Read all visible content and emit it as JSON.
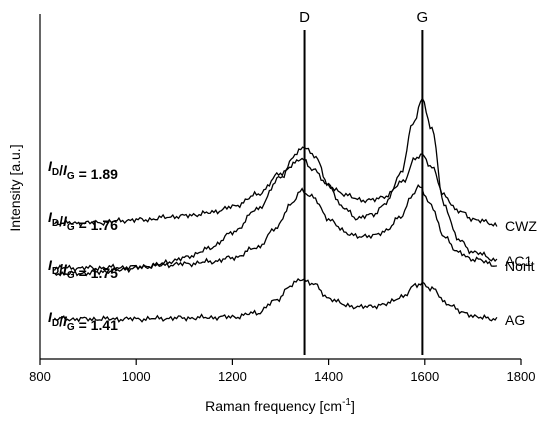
{
  "chart_data": {
    "type": "line",
    "xlabel_main": "Raman frequency [cm",
    "xlabel_sup": "-1",
    "xlabel_end": "]",
    "ylabel": "Intensity [a.u.]",
    "xlim": [
      800,
      1800
    ],
    "x_ticks": [
      "800",
      "1000",
      "1200",
      "1400",
      "1600",
      "1800"
    ],
    "markers": [
      {
        "name": "D",
        "x": 1350
      },
      {
        "name": "G",
        "x": 1595
      }
    ],
    "series": [
      {
        "name": "AC1",
        "ratio": "1.89",
        "baseline": 20,
        "peaks": [
          {
            "x": 830,
            "h": 52
          },
          {
            "x": 850,
            "h": 51
          },
          {
            "x": 900,
            "h": 52
          },
          {
            "x": 950,
            "h": 54
          },
          {
            "x": 1000,
            "h": 57
          },
          {
            "x": 1050,
            "h": 61
          },
          {
            "x": 1100,
            "h": 67
          },
          {
            "x": 1150,
            "h": 76
          },
          {
            "x": 1200,
            "h": 92
          },
          {
            "x": 1250,
            "h": 115
          },
          {
            "x": 1300,
            "h": 147
          },
          {
            "x": 1330,
            "h": 170
          },
          {
            "x": 1350,
            "h": 178
          },
          {
            "x": 1370,
            "h": 170
          },
          {
            "x": 1400,
            "h": 140
          },
          {
            "x": 1430,
            "h": 117
          },
          {
            "x": 1460,
            "h": 107
          },
          {
            "x": 1490,
            "h": 110
          },
          {
            "x": 1520,
            "h": 122
          },
          {
            "x": 1550,
            "h": 152
          },
          {
            "x": 1575,
            "h": 200
          },
          {
            "x": 1595,
            "h": 226
          },
          {
            "x": 1615,
            "h": 195
          },
          {
            "x": 1640,
            "h": 120
          },
          {
            "x": 1670,
            "h": 85
          },
          {
            "x": 1700,
            "h": 73
          },
          {
            "x": 1750,
            "h": 65
          }
        ]
      },
      {
        "name": "CWZ",
        "ratio": "1.76",
        "peaks": [
          {
            "x": 830,
            "h": 108
          },
          {
            "x": 900,
            "h": 108
          },
          {
            "x": 1000,
            "h": 111
          },
          {
            "x": 1100,
            "h": 115
          },
          {
            "x": 1150,
            "h": 118
          },
          {
            "x": 1200,
            "h": 124
          },
          {
            "x": 1250,
            "h": 136
          },
          {
            "x": 1300,
            "h": 157
          },
          {
            "x": 1330,
            "h": 168
          },
          {
            "x": 1345,
            "h": 172
          },
          {
            "x": 1365,
            "h": 163
          },
          {
            "x": 1400,
            "h": 145
          },
          {
            "x": 1440,
            "h": 135
          },
          {
            "x": 1480,
            "h": 130
          },
          {
            "x": 1520,
            "h": 135
          },
          {
            "x": 1555,
            "h": 150
          },
          {
            "x": 1580,
            "h": 172
          },
          {
            "x": 1595,
            "h": 176
          },
          {
            "x": 1615,
            "h": 164
          },
          {
            "x": 1640,
            "h": 135
          },
          {
            "x": 1670,
            "h": 120
          },
          {
            "x": 1700,
            "h": 112
          },
          {
            "x": 1750,
            "h": 106
          }
        ]
      },
      {
        "name": "Norit",
        "ratio": "1.75",
        "peaks": [
          {
            "x": 830,
            "h": 63
          },
          {
            "x": 900,
            "h": 63
          },
          {
            "x": 1000,
            "h": 64
          },
          {
            "x": 1100,
            "h": 67
          },
          {
            "x": 1150,
            "h": 69
          },
          {
            "x": 1200,
            "h": 73
          },
          {
            "x": 1250,
            "h": 83
          },
          {
            "x": 1290,
            "h": 102
          },
          {
            "x": 1320,
            "h": 126
          },
          {
            "x": 1345,
            "h": 140
          },
          {
            "x": 1365,
            "h": 135
          },
          {
            "x": 1400,
            "h": 112
          },
          {
            "x": 1440,
            "h": 97
          },
          {
            "x": 1480,
            "h": 94
          },
          {
            "x": 1520,
            "h": 100
          },
          {
            "x": 1550,
            "h": 115
          },
          {
            "x": 1575,
            "h": 136
          },
          {
            "x": 1590,
            "h": 145
          },
          {
            "x": 1610,
            "h": 128
          },
          {
            "x": 1640,
            "h": 95
          },
          {
            "x": 1670,
            "h": 78
          },
          {
            "x": 1700,
            "h": 72
          },
          {
            "x": 1750,
            "h": 66
          }
        ]
      },
      {
        "name": "AG",
        "ratio": "1.41",
        "peaks": [
          {
            "x": 830,
            "h": 12
          },
          {
            "x": 900,
            "h": 12
          },
          {
            "x": 1000,
            "h": 12
          },
          {
            "x": 1100,
            "h": 13
          },
          {
            "x": 1200,
            "h": 14
          },
          {
            "x": 1250,
            "h": 18
          },
          {
            "x": 1290,
            "h": 30
          },
          {
            "x": 1320,
            "h": 45
          },
          {
            "x": 1345,
            "h": 52
          },
          {
            "x": 1365,
            "h": 48
          },
          {
            "x": 1400,
            "h": 33
          },
          {
            "x": 1440,
            "h": 25
          },
          {
            "x": 1480,
            "h": 24
          },
          {
            "x": 1520,
            "h": 27
          },
          {
            "x": 1555,
            "h": 35
          },
          {
            "x": 1580,
            "h": 45
          },
          {
            "x": 1595,
            "h": 48
          },
          {
            "x": 1615,
            "h": 42
          },
          {
            "x": 1645,
            "h": 28
          },
          {
            "x": 1680,
            "h": 18
          },
          {
            "x": 1720,
            "h": 13
          },
          {
            "x": 1750,
            "h": 12
          }
        ]
      }
    ]
  }
}
